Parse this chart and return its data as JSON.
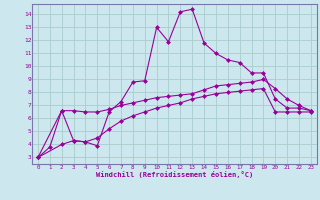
{
  "xlabel": "Windchill (Refroidissement éolien,°C)",
  "bg_color": "#cce8ee",
  "line_color": "#990099",
  "grid_color": "#aacccc",
  "spine_color": "#7777aa",
  "xlim": [
    -0.5,
    23.5
  ],
  "ylim": [
    2.5,
    14.8
  ],
  "xticks": [
    0,
    1,
    2,
    3,
    4,
    5,
    6,
    7,
    8,
    9,
    10,
    11,
    12,
    13,
    14,
    15,
    16,
    17,
    18,
    19,
    20,
    21,
    22,
    23
  ],
  "yticks": [
    3,
    4,
    5,
    6,
    7,
    8,
    9,
    10,
    11,
    12,
    13,
    14
  ],
  "line1_x": [
    0,
    1,
    2,
    3,
    4,
    5,
    6,
    7,
    8,
    9,
    10,
    11,
    12,
    13,
    14,
    15,
    16,
    17,
    18,
    19,
    20,
    21,
    22,
    23
  ],
  "line1_y": [
    3.0,
    3.8,
    6.6,
    4.3,
    4.2,
    3.9,
    6.5,
    7.3,
    8.8,
    8.9,
    13.0,
    11.9,
    14.2,
    14.4,
    11.8,
    11.0,
    10.5,
    10.3,
    9.5,
    9.5,
    7.5,
    6.8,
    6.8,
    6.6
  ],
  "line2_x": [
    0,
    2,
    3,
    4,
    5,
    6,
    7,
    8,
    9,
    10,
    11,
    12,
    13,
    14,
    15,
    16,
    17,
    18,
    19,
    20,
    21,
    22,
    23
  ],
  "line2_y": [
    3.0,
    6.6,
    6.6,
    6.5,
    6.5,
    6.7,
    7.0,
    7.2,
    7.4,
    7.6,
    7.7,
    7.8,
    7.9,
    8.2,
    8.5,
    8.6,
    8.7,
    8.8,
    9.0,
    8.3,
    7.5,
    7.0,
    6.6
  ],
  "line3_x": [
    0,
    2,
    3,
    4,
    5,
    6,
    7,
    8,
    9,
    10,
    11,
    12,
    13,
    14,
    15,
    16,
    17,
    18,
    19,
    20,
    21,
    22,
    23
  ],
  "line3_y": [
    3.0,
    4.0,
    4.3,
    4.2,
    4.5,
    5.2,
    5.8,
    6.2,
    6.5,
    6.8,
    7.0,
    7.2,
    7.5,
    7.7,
    7.9,
    8.0,
    8.1,
    8.2,
    8.3,
    6.5,
    6.5,
    6.5,
    6.5
  ]
}
